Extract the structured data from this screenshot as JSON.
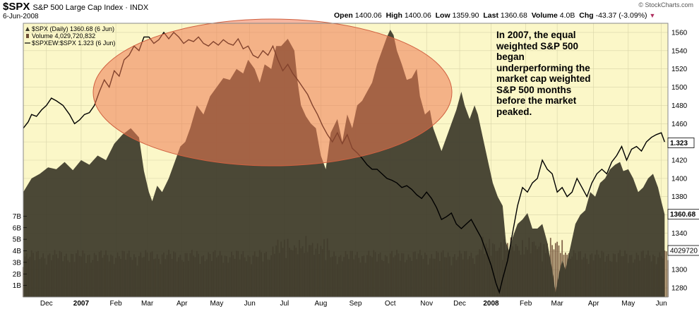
{
  "header": {
    "symbol": "$SPX",
    "name": "S&P 500 Large Cap Index",
    "exchange": "INDX",
    "date": "6-Jun-2008",
    "open_label": "Open",
    "open": "1400.06",
    "high_label": "High",
    "high": "1400.06",
    "low_label": "Low",
    "low": "1359.90",
    "last_label": "Last",
    "last": "1360.68",
    "volume_label": "Volume",
    "volume": "4.0B",
    "chg_label": "Chg",
    "chg": "-43.37 (-3.09%)",
    "logo": "© StockCharts.com"
  },
  "annotation": "In 2007, the equal weighted S&P 500 began underperforming the market cap weighted S&P 500 months before the market peaked.",
  "colors": {
    "plot_bg": "#fbf7c8",
    "area_fill": "#3d3a2b",
    "ellipse_fill": "#ee7a52",
    "ellipse_stroke": "#d06040",
    "ratio_line": "#000000",
    "volume_bar": "#6e4e36"
  },
  "chart_data": {
    "type": "area",
    "legend": [
      {
        "name": "$SPX (Daily) 1360.68 (6 Jun)",
        "marker": "area"
      },
      {
        "name": "Volume 4,029,720,832",
        "marker": "bar"
      },
      {
        "name": "$SPXEW:$SPX 1.323 (6 Jun)",
        "marker": "line"
      }
    ],
    "x_ticks": [
      "Dec",
      "2007",
      "Feb",
      "Mar",
      "Apr",
      "May",
      "Jun",
      "Jul",
      "Aug",
      "Sep",
      "Oct",
      "Nov",
      "Dec",
      "2008",
      "Feb",
      "Mar",
      "Apr",
      "May",
      "Jun"
    ],
    "bold_ticks": [
      "2007",
      "2008"
    ],
    "x_tick_day": [
      14,
      35,
      56,
      75,
      96,
      117,
      137,
      158,
      180,
      201,
      222,
      244,
      264,
      283,
      304,
      323,
      345,
      366,
      386
    ],
    "y_ticks": [
      1280,
      1300,
      1320,
      1340,
      1360,
      1380,
      1400,
      1420,
      1440,
      1460,
      1480,
      1500,
      1520,
      1540,
      1560
    ],
    "ylim": [
      1270,
      1570
    ],
    "volume_ticks": [
      "7B",
      "6B",
      "5B",
      "4B",
      "3B",
      "2B",
      "1B"
    ],
    "volume_tick_values": [
      7,
      6,
      5,
      4,
      3,
      2,
      1
    ],
    "volume_max": 8.0,
    "badges": [
      "1.323",
      "1360.68",
      "4029720"
    ],
    "badge_values": [
      1439,
      1360.68,
      1315
    ],
    "day_range": [
      0,
      390
    ],
    "series": [
      {
        "name": "$SPX (Daily)",
        "points": [
          [
            0,
            1385
          ],
          [
            5,
            1400
          ],
          [
            10,
            1405
          ],
          [
            15,
            1412
          ],
          [
            20,
            1410
          ],
          [
            25,
            1418
          ],
          [
            30,
            1409
          ],
          [
            35,
            1420
          ],
          [
            40,
            1415
          ],
          [
            45,
            1425
          ],
          [
            50,
            1420
          ],
          [
            55,
            1438
          ],
          [
            60,
            1448
          ],
          [
            65,
            1455
          ],
          [
            70,
            1445
          ],
          [
            73,
            1408
          ],
          [
            76,
            1385
          ],
          [
            78,
            1375
          ],
          [
            81,
            1392
          ],
          [
            84,
            1385
          ],
          [
            88,
            1400
          ],
          [
            92,
            1420
          ],
          [
            95,
            1435
          ],
          [
            98,
            1440
          ],
          [
            101,
            1455
          ],
          [
            105,
            1480
          ],
          [
            109,
            1470
          ],
          [
            113,
            1490
          ],
          [
            117,
            1500
          ],
          [
            121,
            1510
          ],
          [
            125,
            1508
          ],
          [
            129,
            1520
          ],
          [
            133,
            1515
          ],
          [
            136,
            1530
          ],
          [
            140,
            1520
          ],
          [
            143,
            1505
          ],
          [
            146,
            1525
          ],
          [
            150,
            1520
          ],
          [
            153,
            1545
          ],
          [
            156,
            1545
          ],
          [
            160,
            1553
          ],
          [
            164,
            1540
          ],
          [
            166,
            1505
          ],
          [
            168,
            1480
          ],
          [
            171,
            1468
          ],
          [
            174,
            1460
          ],
          [
            177,
            1455
          ],
          [
            180,
            1425
          ],
          [
            183,
            1410
          ],
          [
            186,
            1450
          ],
          [
            190,
            1465
          ],
          [
            193,
            1440
          ],
          [
            196,
            1470
          ],
          [
            199,
            1455
          ],
          [
            202,
            1480
          ],
          [
            205,
            1485
          ],
          [
            208,
            1495
          ],
          [
            211,
            1505
          ],
          [
            214,
            1525
          ],
          [
            217,
            1540
          ],
          [
            220,
            1555
          ],
          [
            222,
            1563
          ],
          [
            224,
            1557
          ],
          [
            226,
            1540
          ],
          [
            229,
            1525
          ],
          [
            232,
            1508
          ],
          [
            235,
            1510
          ],
          [
            238,
            1520
          ],
          [
            240,
            1490
          ],
          [
            243,
            1470
          ],
          [
            246,
            1475
          ],
          [
            248,
            1455
          ],
          [
            251,
            1440
          ],
          [
            253,
            1430
          ],
          [
            256,
            1445
          ],
          [
            259,
            1460
          ],
          [
            262,
            1475
          ],
          [
            265,
            1495
          ],
          [
            267,
            1480
          ],
          [
            270,
            1465
          ],
          [
            273,
            1480
          ],
          [
            275,
            1470
          ],
          [
            278,
            1445
          ],
          [
            281,
            1420
          ],
          [
            284,
            1395
          ],
          [
            287,
            1380
          ],
          [
            290,
            1370
          ],
          [
            292,
            1330
          ],
          [
            294,
            1320
          ],
          [
            296,
            1335
          ],
          [
            299,
            1350
          ],
          [
            302,
            1355
          ],
          [
            305,
            1362
          ],
          [
            308,
            1345
          ],
          [
            311,
            1345
          ],
          [
            314,
            1350
          ],
          [
            317,
            1330
          ],
          [
            320,
            1300
          ],
          [
            322,
            1275
          ],
          [
            324,
            1295
          ],
          [
            326,
            1310
          ],
          [
            328,
            1300
          ],
          [
            331,
            1325
          ],
          [
            334,
            1350
          ],
          [
            337,
            1360
          ],
          [
            340,
            1365
          ],
          [
            343,
            1385
          ],
          [
            346,
            1380
          ],
          [
            349,
            1395
          ],
          [
            352,
            1400
          ],
          [
            355,
            1410
          ],
          [
            358,
            1415
          ],
          [
            361,
            1418
          ],
          [
            363,
            1408
          ],
          [
            366,
            1410
          ],
          [
            369,
            1400
          ],
          [
            372,
            1385
          ],
          [
            375,
            1390
          ],
          [
            378,
            1400
          ],
          [
            381,
            1405
          ],
          [
            384,
            1390
          ],
          [
            386,
            1375
          ],
          [
            388,
            1360.68
          ]
        ]
      },
      {
        "name": "$SPXEW:$SPX",
        "points": [
          [
            0,
            1455
          ],
          [
            3,
            1462
          ],
          [
            5,
            1470
          ],
          [
            8,
            1468
          ],
          [
            11,
            1475
          ],
          [
            14,
            1480
          ],
          [
            17,
            1488
          ],
          [
            20,
            1485
          ],
          [
            24,
            1480
          ],
          [
            28,
            1470
          ],
          [
            31,
            1460
          ],
          [
            34,
            1464
          ],
          [
            37,
            1470
          ],
          [
            40,
            1472
          ],
          [
            43,
            1480
          ],
          [
            46,
            1495
          ],
          [
            49,
            1508
          ],
          [
            52,
            1500
          ],
          [
            55,
            1518
          ],
          [
            58,
            1512
          ],
          [
            61,
            1530
          ],
          [
            64,
            1535
          ],
          [
            67,
            1545
          ],
          [
            70,
            1540
          ],
          [
            73,
            1555
          ],
          [
            76,
            1555
          ],
          [
            79,
            1548
          ],
          [
            82,
            1552
          ],
          [
            85,
            1560
          ],
          [
            88,
            1553
          ],
          [
            91,
            1560
          ],
          [
            94,
            1555
          ],
          [
            97,
            1548
          ],
          [
            100,
            1552
          ],
          [
            103,
            1550
          ],
          [
            106,
            1555
          ],
          [
            109,
            1548
          ],
          [
            112,
            1545
          ],
          [
            115,
            1550
          ],
          [
            118,
            1546
          ],
          [
            121,
            1552
          ],
          [
            124,
            1548
          ],
          [
            127,
            1546
          ],
          [
            130,
            1553
          ],
          [
            133,
            1542
          ],
          [
            136,
            1545
          ],
          [
            139,
            1535
          ],
          [
            142,
            1532
          ],
          [
            145,
            1540
          ],
          [
            148,
            1535
          ],
          [
            151,
            1545
          ],
          [
            154,
            1530
          ],
          [
            157,
            1518
          ],
          [
            160,
            1525
          ],
          [
            163,
            1515
          ],
          [
            166,
            1508
          ],
          [
            169,
            1500
          ],
          [
            172,
            1492
          ],
          [
            175,
            1480
          ],
          [
            178,
            1470
          ],
          [
            181,
            1458
          ],
          [
            184,
            1448
          ],
          [
            187,
            1440
          ],
          [
            190,
            1450
          ],
          [
            193,
            1438
          ],
          [
            196,
            1448
          ],
          [
            199,
            1433
          ],
          [
            202,
            1428
          ],
          [
            205,
            1422
          ],
          [
            208,
            1415
          ],
          [
            211,
            1410
          ],
          [
            214,
            1410
          ],
          [
            217,
            1405
          ],
          [
            220,
            1400
          ],
          [
            223,
            1398
          ],
          [
            226,
            1395
          ],
          [
            229,
            1390
          ],
          [
            232,
            1392
          ],
          [
            235,
            1388
          ],
          [
            238,
            1382
          ],
          [
            241,
            1378
          ],
          [
            244,
            1385
          ],
          [
            247,
            1378
          ],
          [
            250,
            1368
          ],
          [
            253,
            1355
          ],
          [
            256,
            1358
          ],
          [
            259,
            1362
          ],
          [
            262,
            1350
          ],
          [
            265,
            1345
          ],
          [
            268,
            1350
          ],
          [
            271,
            1355
          ],
          [
            274,
            1345
          ],
          [
            277,
            1335
          ],
          [
            280,
            1320
          ],
          [
            283,
            1305
          ],
          [
            286,
            1285
          ],
          [
            288,
            1275
          ],
          [
            290,
            1290
          ],
          [
            293,
            1310
          ],
          [
            296,
            1340
          ],
          [
            299,
            1370
          ],
          [
            302,
            1390
          ],
          [
            305,
            1385
          ],
          [
            308,
            1395
          ],
          [
            311,
            1400
          ],
          [
            314,
            1420
          ],
          [
            317,
            1410
          ],
          [
            320,
            1405
          ],
          [
            323,
            1385
          ],
          [
            326,
            1390
          ],
          [
            329,
            1380
          ],
          [
            332,
            1385
          ],
          [
            335,
            1400
          ],
          [
            338,
            1390
          ],
          [
            341,
            1380
          ],
          [
            344,
            1395
          ],
          [
            347,
            1405
          ],
          [
            350,
            1410
          ],
          [
            353,
            1405
          ],
          [
            356,
            1418
          ],
          [
            359,
            1425
          ],
          [
            362,
            1435
          ],
          [
            365,
            1420
          ],
          [
            368,
            1432
          ],
          [
            371,
            1435
          ],
          [
            374,
            1430
          ],
          [
            377,
            1440
          ],
          [
            380,
            1445
          ],
          [
            383,
            1448
          ],
          [
            386,
            1450
          ],
          [
            388,
            1440
          ]
        ]
      }
    ]
  }
}
